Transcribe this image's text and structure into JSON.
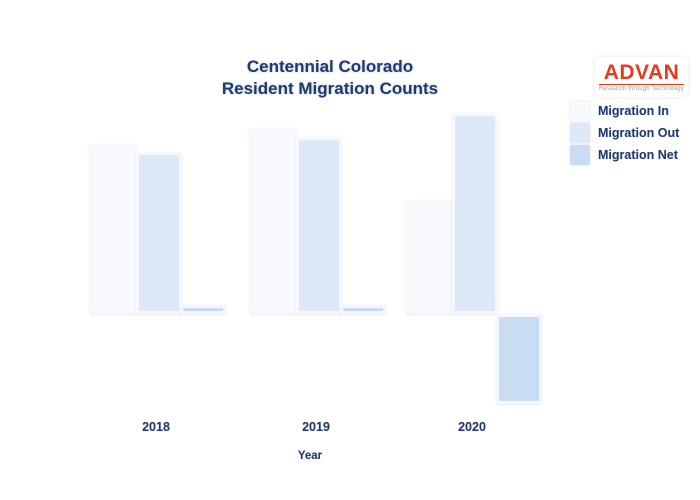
{
  "page": {
    "background": "#ffffff"
  },
  "title": {
    "line1": "Centennial Colorado",
    "line2": "Resident Migration Counts",
    "color": "#1e3a6e"
  },
  "logo": {
    "name": "ADVAN",
    "tagline": "Research through Technology",
    "brand_color": "#e63a1f"
  },
  "legend": {
    "position": "top-right",
    "items": [
      {
        "label": "Migration In",
        "color": "#f8fafe"
      },
      {
        "label": "Migration Out",
        "color": "#dde9f8"
      },
      {
        "label": "Migration Net",
        "color": "#c9ddf2"
      }
    ]
  },
  "x_axis": {
    "title": "Year"
  },
  "chart_data": {
    "type": "bar",
    "title": "Centennial Colorado Resident Migration Counts",
    "categories": [
      "2018",
      "2019",
      "2020"
    ],
    "series": [
      {
        "name": "Migration In",
        "color": "#f8fafe",
        "values": [
          170,
          186,
          114
        ]
      },
      {
        "name": "Migration Out",
        "color": "#dde9f8",
        "values": [
          162,
          177,
          201
        ]
      },
      {
        "name": "Migration Net",
        "color": "#c9ddf2",
        "values": [
          9,
          9,
          -90
        ]
      }
    ],
    "xlabel": "Year",
    "ylabel": "",
    "grid": false,
    "legend_position": "top-right",
    "units_note": "no y-axis shown; values are relative estimates from bar heights"
  }
}
